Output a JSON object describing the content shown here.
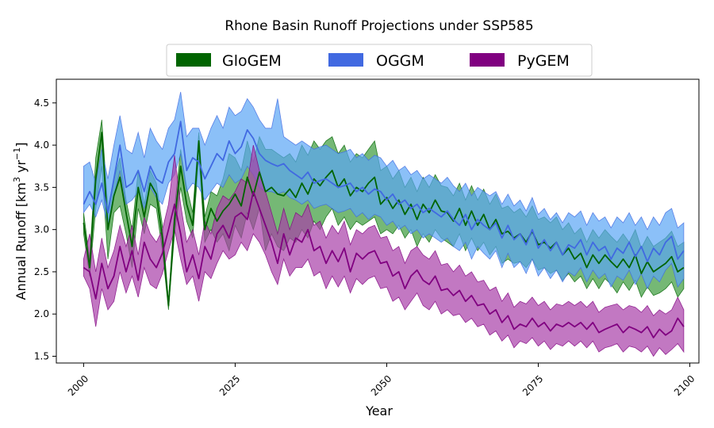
{
  "chart_data": {
    "type": "area",
    "title": "Rhone Basin Runoff Projections under SSP585",
    "xlabel": "Year",
    "ylabel_main": "Annual Runoff [km",
    "ylabel_sup1": "3",
    "ylabel_mid": " yr",
    "ylabel_sup2": "−1",
    "ylabel_end": "]",
    "xlim": [
      1995.5,
      2101.5
    ],
    "ylim": [
      1.42,
      4.78
    ],
    "xticks": [
      2000,
      2025,
      2050,
      2075,
      2100
    ],
    "yticks": [
      1.5,
      2.0,
      2.5,
      3.0,
      3.5,
      4.0,
      4.5
    ],
    "ytick_labels": [
      "1.5",
      "2.0",
      "2.5",
      "3.0",
      "3.5",
      "4.0",
      "4.5"
    ],
    "legend_position": "top-center",
    "grid": false,
    "series": [
      {
        "name": "GloGEM",
        "color": "#006400",
        "fill": "#3a9a3a",
        "start_year": 2000,
        "mean": [
          3.08,
          2.55,
          3.6,
          4.15,
          3.0,
          3.4,
          3.62,
          3.2,
          2.8,
          3.5,
          3.15,
          3.55,
          3.42,
          2.9,
          2.1,
          3.1,
          3.75,
          3.3,
          3.05,
          4.05,
          3.0,
          3.25,
          3.1,
          3.22,
          3.3,
          3.42,
          3.28,
          3.62,
          3.4,
          3.68,
          3.45,
          3.5,
          3.42,
          3.4,
          3.48,
          3.38,
          3.55,
          3.42,
          3.6,
          3.52,
          3.62,
          3.7,
          3.5,
          3.6,
          3.4,
          3.5,
          3.45,
          3.55,
          3.62,
          3.3,
          3.38,
          3.25,
          3.35,
          3.18,
          3.3,
          3.12,
          3.3,
          3.2,
          3.35,
          3.22,
          3.2,
          3.1,
          3.25,
          3.05,
          3.22,
          3.05,
          3.18,
          3.0,
          3.12,
          2.95,
          2.98,
          2.9,
          2.95,
          2.85,
          2.98,
          2.82,
          2.85,
          2.78,
          2.85,
          2.7,
          2.78,
          2.65,
          2.72,
          2.55,
          2.7,
          2.6,
          2.7,
          2.62,
          2.55,
          2.65,
          2.55,
          2.7,
          2.48,
          2.62,
          2.5,
          2.55,
          2.6,
          2.68,
          2.5,
          2.55
        ],
        "lower": [
          2.95,
          2.45,
          3.25,
          3.75,
          2.65,
          3.2,
          3.28,
          2.95,
          2.55,
          3.25,
          2.95,
          3.3,
          3.25,
          2.75,
          2.05,
          2.95,
          3.5,
          3.1,
          2.9,
          3.85,
          2.85,
          3.0,
          2.85,
          2.95,
          2.75,
          3.05,
          2.9,
          3.2,
          3.0,
          3.25,
          2.75,
          2.95,
          2.8,
          2.75,
          2.9,
          2.85,
          3.0,
          2.9,
          3.1,
          3.0,
          3.15,
          3.25,
          3.05,
          3.15,
          3.0,
          3.1,
          3.05,
          3.1,
          3.15,
          2.95,
          3.0,
          2.95,
          3.05,
          2.9,
          3.0,
          2.8,
          2.95,
          2.85,
          3.0,
          2.9,
          2.85,
          2.8,
          2.95,
          2.75,
          2.9,
          2.75,
          2.85,
          2.7,
          2.8,
          2.6,
          2.65,
          2.6,
          2.62,
          2.55,
          2.65,
          2.52,
          2.55,
          2.48,
          2.52,
          2.4,
          2.48,
          2.38,
          2.45,
          2.3,
          2.42,
          2.3,
          2.42,
          2.35,
          2.25,
          2.38,
          2.28,
          2.4,
          2.2,
          2.32,
          2.22,
          2.25,
          2.3,
          2.38,
          2.2,
          2.3
        ],
        "upper": [
          3.2,
          2.65,
          3.85,
          4.3,
          3.25,
          3.6,
          3.85,
          3.35,
          3.0,
          3.7,
          3.3,
          3.7,
          3.55,
          3.05,
          2.15,
          3.25,
          3.95,
          3.5,
          3.2,
          4.15,
          3.15,
          3.45,
          3.4,
          3.6,
          3.9,
          3.85,
          3.7,
          4.05,
          3.8,
          4.1,
          3.95,
          3.95,
          3.9,
          3.85,
          3.9,
          3.8,
          4.0,
          3.88,
          4.05,
          3.95,
          4.05,
          4.1,
          3.9,
          4.0,
          3.8,
          3.9,
          3.85,
          3.95,
          4.05,
          3.7,
          3.75,
          3.6,
          3.7,
          3.5,
          3.62,
          3.45,
          3.62,
          3.5,
          3.65,
          3.52,
          3.5,
          3.4,
          3.55,
          3.35,
          3.52,
          3.35,
          3.48,
          3.3,
          3.42,
          3.25,
          3.28,
          3.2,
          3.25,
          3.15,
          3.28,
          3.12,
          3.15,
          3.08,
          3.15,
          3.0,
          3.08,
          2.95,
          3.02,
          2.85,
          3.0,
          2.9,
          3.0,
          2.92,
          2.85,
          2.95,
          2.85,
          3.0,
          2.78,
          2.92,
          2.8,
          2.85,
          2.9,
          2.98,
          2.8,
          2.85
        ]
      },
      {
        "name": "OGGM",
        "color": "#4169e1",
        "fill": "#5aa5f5",
        "start_year": 2000,
        "mean": [
          3.3,
          3.45,
          3.3,
          3.55,
          3.2,
          3.6,
          4.0,
          3.5,
          3.55,
          3.7,
          3.45,
          3.75,
          3.6,
          3.55,
          3.8,
          3.9,
          4.28,
          3.7,
          3.85,
          3.8,
          3.6,
          3.75,
          3.9,
          3.82,
          4.05,
          3.9,
          3.98,
          4.18,
          4.08,
          3.9,
          3.82,
          3.78,
          3.75,
          3.78,
          3.7,
          3.65,
          3.6,
          3.68,
          3.55,
          3.58,
          3.6,
          3.55,
          3.5,
          3.52,
          3.55,
          3.45,
          3.5,
          3.42,
          3.48,
          3.45,
          3.35,
          3.42,
          3.3,
          3.35,
          3.25,
          3.3,
          3.2,
          3.25,
          3.2,
          3.15,
          3.22,
          3.12,
          3.05,
          3.18,
          3.0,
          3.12,
          3.05,
          3.0,
          3.08,
          2.9,
          3.05,
          2.88,
          2.95,
          2.82,
          3.0,
          2.78,
          2.88,
          2.75,
          2.85,
          2.7,
          2.82,
          2.78,
          2.88,
          2.7,
          2.85,
          2.75,
          2.8,
          2.65,
          2.78,
          2.72,
          2.85,
          2.68,
          2.8,
          2.62,
          2.78,
          2.7,
          2.85,
          2.92,
          2.65,
          2.75
        ],
        "lower": [
          3.2,
          3.3,
          3.15,
          3.35,
          3.05,
          3.4,
          3.7,
          3.3,
          3.35,
          3.45,
          3.25,
          3.5,
          3.38,
          3.3,
          3.55,
          3.65,
          3.9,
          3.45,
          3.55,
          3.5,
          3.35,
          3.45,
          3.55,
          3.5,
          3.65,
          3.55,
          3.6,
          3.75,
          3.65,
          3.5,
          3.45,
          3.45,
          3.42,
          3.45,
          3.38,
          3.35,
          3.3,
          3.35,
          3.25,
          3.28,
          3.3,
          3.25,
          3.2,
          3.22,
          3.25,
          3.15,
          3.2,
          3.12,
          3.18,
          3.15,
          3.05,
          3.1,
          3.0,
          3.05,
          2.95,
          3.0,
          2.9,
          2.95,
          2.9,
          2.85,
          2.9,
          2.8,
          2.75,
          2.85,
          2.65,
          2.8,
          2.72,
          2.65,
          2.75,
          2.55,
          2.72,
          2.55,
          2.62,
          2.48,
          2.65,
          2.45,
          2.55,
          2.42,
          2.52,
          2.38,
          2.5,
          2.45,
          2.55,
          2.38,
          2.52,
          2.42,
          2.48,
          2.32,
          2.45,
          2.4,
          2.52,
          2.35,
          2.48,
          2.3,
          2.45,
          2.38,
          2.52,
          2.6,
          2.32,
          2.42
        ],
        "upper": [
          3.75,
          3.8,
          3.55,
          3.95,
          3.6,
          4.0,
          4.35,
          3.95,
          3.9,
          4.15,
          3.85,
          4.2,
          4.05,
          3.95,
          4.2,
          4.3,
          4.63,
          4.1,
          4.2,
          4.2,
          4.0,
          4.2,
          4.35,
          4.2,
          4.45,
          4.35,
          4.4,
          4.55,
          4.45,
          4.3,
          4.2,
          4.2,
          4.55,
          4.1,
          4.05,
          4.0,
          4.05,
          4.0,
          3.95,
          3.98,
          4.0,
          3.95,
          3.9,
          3.92,
          3.95,
          3.85,
          3.9,
          3.82,
          3.88,
          3.85,
          3.75,
          3.82,
          3.7,
          3.75,
          3.65,
          3.7,
          3.6,
          3.65,
          3.6,
          3.55,
          3.62,
          3.52,
          3.45,
          3.55,
          3.4,
          3.5,
          3.45,
          3.4,
          3.45,
          3.3,
          3.42,
          3.28,
          3.35,
          3.22,
          3.38,
          3.18,
          3.25,
          3.12,
          3.2,
          3.08,
          3.2,
          3.15,
          3.22,
          3.05,
          3.2,
          3.1,
          3.15,
          3.02,
          3.15,
          3.08,
          3.2,
          3.05,
          3.15,
          3.0,
          3.15,
          3.05,
          3.2,
          3.25,
          3.02,
          3.08
        ]
      },
      {
        "name": "PyGEM",
        "color": "#800080",
        "fill": "#a83fa8",
        "start_year": 2000,
        "mean": [
          2.55,
          2.5,
          2.18,
          2.6,
          2.3,
          2.45,
          2.8,
          2.5,
          2.75,
          2.4,
          2.85,
          2.65,
          2.55,
          2.72,
          3.0,
          3.3,
          2.95,
          2.5,
          2.7,
          2.42,
          2.8,
          2.65,
          2.95,
          3.05,
          2.9,
          3.15,
          3.2,
          3.12,
          3.45,
          3.25,
          3.05,
          2.85,
          2.6,
          2.95,
          2.7,
          2.9,
          2.85,
          3.0,
          2.75,
          2.8,
          2.6,
          2.75,
          2.62,
          2.78,
          2.5,
          2.72,
          2.65,
          2.72,
          2.75,
          2.6,
          2.62,
          2.45,
          2.5,
          2.3,
          2.45,
          2.52,
          2.4,
          2.35,
          2.45,
          2.28,
          2.3,
          2.22,
          2.28,
          2.15,
          2.22,
          2.1,
          2.12,
          2.0,
          2.05,
          1.9,
          1.98,
          1.82,
          1.88,
          1.85,
          1.95,
          1.85,
          1.9,
          1.8,
          1.88,
          1.85,
          1.9,
          1.85,
          1.9,
          1.82,
          1.9,
          1.78,
          1.82,
          1.85,
          1.88,
          1.78,
          1.85,
          1.82,
          1.78,
          1.85,
          1.72,
          1.82,
          1.75,
          1.8,
          1.95,
          1.85
        ],
        "lower": [
          2.45,
          2.3,
          1.85,
          2.3,
          2.05,
          2.15,
          2.5,
          2.25,
          2.45,
          2.2,
          2.55,
          2.35,
          2.3,
          2.48,
          2.75,
          3.0,
          2.65,
          2.35,
          2.45,
          2.15,
          2.5,
          2.42,
          2.6,
          2.75,
          2.65,
          2.7,
          2.85,
          2.75,
          2.95,
          2.85,
          2.7,
          2.5,
          2.35,
          2.65,
          2.45,
          2.55,
          2.55,
          2.65,
          2.45,
          2.5,
          2.3,
          2.45,
          2.32,
          2.45,
          2.25,
          2.42,
          2.35,
          2.42,
          2.45,
          2.3,
          2.32,
          2.15,
          2.2,
          2.05,
          2.15,
          2.25,
          2.1,
          2.05,
          2.15,
          2.0,
          2.05,
          1.98,
          2.0,
          1.9,
          1.95,
          1.85,
          1.88,
          1.75,
          1.8,
          1.68,
          1.75,
          1.6,
          1.68,
          1.65,
          1.72,
          1.62,
          1.68,
          1.58,
          1.65,
          1.62,
          1.68,
          1.62,
          1.68,
          1.6,
          1.68,
          1.55,
          1.6,
          1.62,
          1.65,
          1.55,
          1.62,
          1.6,
          1.55,
          1.62,
          1.5,
          1.6,
          1.52,
          1.58,
          1.65,
          1.55
        ],
        "upper": [
          2.65,
          2.95,
          2.5,
          2.9,
          2.55,
          2.75,
          3.05,
          2.8,
          3.05,
          2.7,
          3.15,
          2.95,
          2.85,
          3.0,
          3.3,
          3.88,
          3.3,
          2.85,
          3.0,
          2.7,
          3.1,
          2.95,
          3.25,
          3.4,
          3.35,
          3.45,
          3.6,
          3.55,
          4.0,
          3.7,
          3.45,
          3.2,
          2.95,
          3.25,
          3.0,
          3.2,
          3.15,
          3.3,
          3.05,
          3.1,
          2.9,
          3.05,
          2.95,
          3.1,
          2.82,
          3.0,
          2.95,
          3.02,
          3.05,
          2.9,
          2.92,
          2.75,
          2.8,
          2.6,
          2.75,
          2.8,
          2.7,
          2.65,
          2.75,
          2.58,
          2.6,
          2.5,
          2.58,
          2.45,
          2.5,
          2.38,
          2.4,
          2.28,
          2.32,
          2.15,
          2.25,
          2.08,
          2.15,
          2.12,
          2.2,
          2.1,
          2.15,
          2.05,
          2.12,
          2.1,
          2.15,
          2.1,
          2.15,
          2.08,
          2.15,
          2.02,
          2.08,
          2.1,
          2.12,
          2.05,
          2.1,
          2.08,
          2.02,
          2.1,
          1.98,
          2.05,
          2.0,
          2.05,
          2.2,
          2.05
        ]
      }
    ]
  }
}
